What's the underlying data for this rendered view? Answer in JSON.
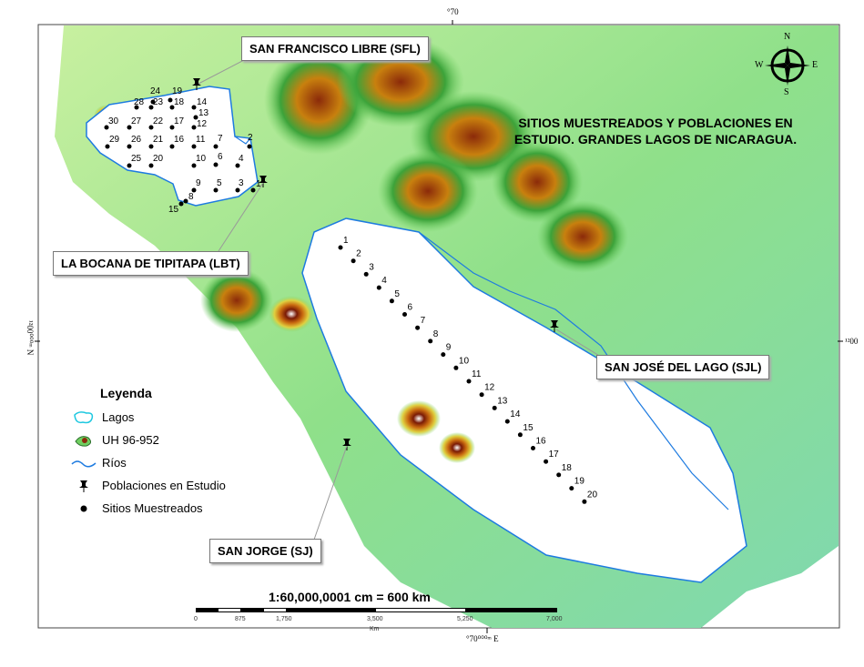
{
  "title": [
    "SITIOS  MUESTREADOS Y POBLACIONES EN",
    "ESTUDIO. GRANDES LAGOS DE NICARAGUA."
  ],
  "populations": [
    {
      "label": "SAN FRANCISCO LIBRE (SFL)"
    },
    {
      "label": "LA BOCANA DE TIPITAPA (LBT)"
    },
    {
      "label": "SAN JOSÉ DEL LAGO (SJL)"
    },
    {
      "label": "SAN JORGE (SJ)"
    }
  ],
  "lake_managua_sites": [
    "1",
    "2",
    "3",
    "4",
    "5",
    "6",
    "7",
    "8",
    "9",
    "10",
    "11",
    "12",
    "13",
    "14",
    "15",
    "16",
    "17",
    "18",
    "19",
    "20",
    "21",
    "22",
    "23",
    "24",
    "25",
    "26",
    "27",
    "28",
    "29",
    "30"
  ],
  "lake_nicaragua_sites": [
    "1",
    "2",
    "3",
    "4",
    "5",
    "6",
    "7",
    "8",
    "9",
    "10",
    "11",
    "12",
    "13",
    "14",
    "15",
    "16",
    "17",
    "18",
    "19",
    "20"
  ],
  "legend": {
    "title": "Leyenda",
    "items": [
      {
        "label": "Lagos",
        "icon": "lake-outline-icon"
      },
      {
        "label": "UH 96-952",
        "icon": "terrain-swatch-icon"
      },
      {
        "label": "Ríos",
        "icon": "river-line-icon"
      },
      {
        "label": "Poblaciones en Estudio",
        "icon": "pushpin-icon"
      },
      {
        "label": "Sitios Muestreados",
        "icon": "dot-icon"
      }
    ]
  },
  "scale": {
    "text": "1:60,000,0001 cm = 600 km",
    "ticks": [
      "0",
      "875",
      "1,750",
      "3,500",
      "5,250",
      "7,000"
    ],
    "unit": "Km"
  },
  "compass": {
    "n": "N",
    "s": "S",
    "e": "E",
    "w": "W"
  },
  "coords": {
    "top": "°70",
    "bottom": "°70⁰⁰⁰ᵐ E",
    "left": "¹²00⁰⁰⁰ᵐ N",
    "right": "¹²00"
  },
  "colors": {
    "lake_outline": "#1e7be0",
    "lowland": "#9be08a",
    "highland": "#8b2a0a",
    "water": "#ffffff"
  }
}
